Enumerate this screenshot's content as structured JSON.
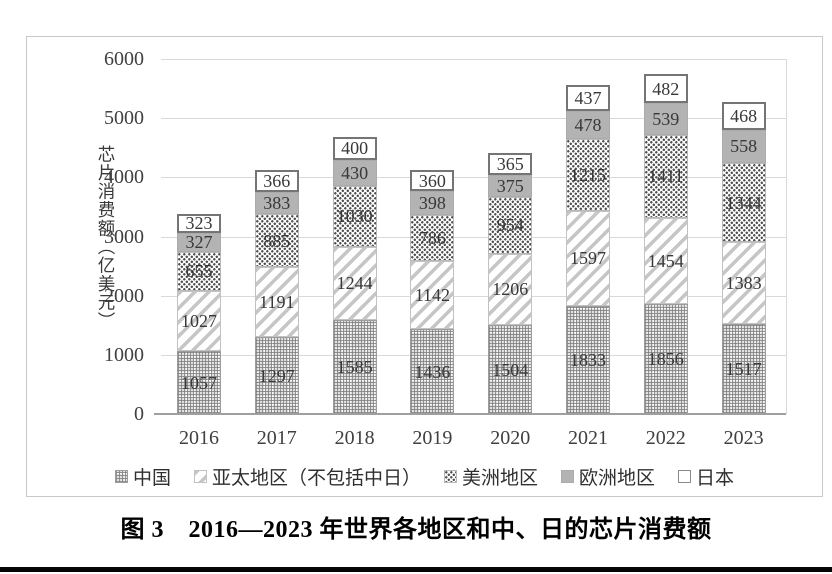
{
  "figure": {
    "caption": "图 3　2016—2023 年世界各地区和中、日的芯片消费额"
  },
  "chart_data": {
    "type": "bar",
    "stacked": true,
    "title": "",
    "xlabel": "",
    "ylabel": "芯片消费额（亿美元）",
    "ylim": [
      0,
      6000
    ],
    "yticks": [
      0,
      1000,
      2000,
      3000,
      4000,
      5000,
      6000
    ],
    "grid": true,
    "legend_position": "bottom",
    "categories": [
      "2016",
      "2017",
      "2018",
      "2019",
      "2020",
      "2021",
      "2022",
      "2023"
    ],
    "series": [
      {
        "name": "中国",
        "pattern": "crosshatch",
        "values": [
          1057,
          1297,
          1585,
          1436,
          1504,
          1833,
          1856,
          1517
        ]
      },
      {
        "name": "亚太地区（不包括中日）",
        "pattern": "diagonal",
        "values": [
          1027,
          1191,
          1244,
          1142,
          1206,
          1597,
          1454,
          1383
        ]
      },
      {
        "name": "美洲地区",
        "pattern": "dots",
        "values": [
          655,
          885,
          1030,
          786,
          954,
          1215,
          1411,
          1344
        ]
      },
      {
        "name": "欧洲地区",
        "pattern": "solid",
        "values": [
          327,
          383,
          430,
          398,
          375,
          478,
          539,
          558
        ]
      },
      {
        "name": "日本",
        "pattern": "white",
        "values": [
          323,
          366,
          400,
          360,
          365,
          437,
          482,
          468
        ]
      }
    ],
    "colors": {
      "europe_fill": "#b3b3b3",
      "gridline": "#d9d9d9",
      "axis_line": "#9f9f9f",
      "label_text": "#383838",
      "japan_box_border": "#757575"
    }
  }
}
